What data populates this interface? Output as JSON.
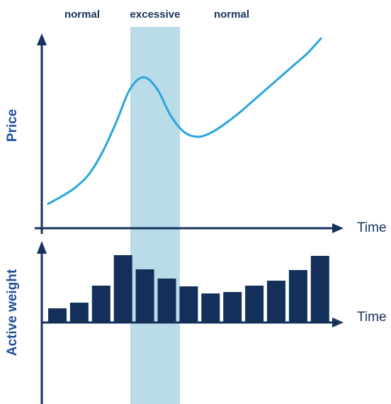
{
  "chart_data": [
    {
      "type": "line",
      "ylabel": "Price",
      "xlabel": "Time",
      "highlight_color": "#b9dce8",
      "series_color": "#29a6dc",
      "axis_color": "#17325c",
      "phases": [
        {
          "label": "normal"
        },
        {
          "label": "excessive"
        },
        {
          "label": "normal"
        }
      ],
      "x": [
        0,
        0.5,
        1,
        1.5,
        2,
        2.5,
        3,
        3.5,
        4,
        4.5,
        5,
        5.5,
        6,
        6.5,
        7,
        7.5,
        8,
        8.5,
        9,
        9.5,
        10
      ],
      "values": [
        0.05,
        0.1,
        0.16,
        0.25,
        0.4,
        0.6,
        0.82,
        0.9,
        0.82,
        0.64,
        0.53,
        0.5,
        0.53,
        0.59,
        0.66,
        0.74,
        0.82,
        0.9,
        0.98,
        1.06,
        1.16
      ]
    },
    {
      "type": "bar",
      "ylabel": "Active weight",
      "xlabel": "Time",
      "bar_color": "#14305a",
      "values": [
        0.2,
        0.28,
        0.52,
        0.95,
        0.75,
        0.62,
        0.51,
        0.41,
        0.43,
        0.52,
        0.59,
        0.74,
        0.94
      ]
    }
  ]
}
